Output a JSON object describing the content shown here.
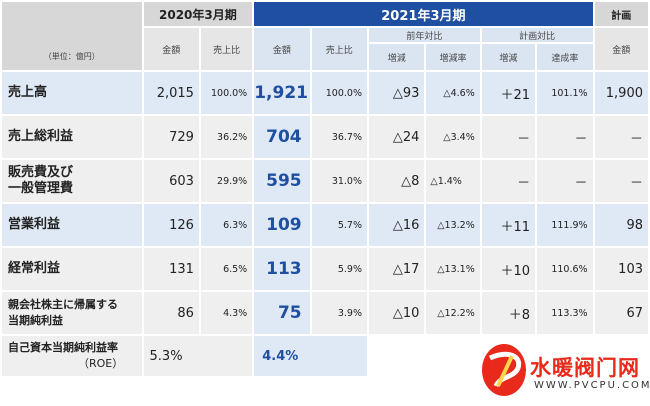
{
  "header": {
    "fy2020": "2020年3月期",
    "fy2021": "2021年3月期",
    "plan": "計画",
    "yoy": "前年対比",
    "vs_plan": "計画対比",
    "unit": "（単位：億円）",
    "amount": "金額",
    "sales_ratio": "売上比",
    "change": "増減",
    "change_rate": "増減率",
    "achievement": "達成率"
  },
  "rows": [
    {
      "label1": "売上高",
      "label2": "",
      "a2020": "2,015",
      "r2020": "100.0%",
      "a2021": "1,921",
      "r2021": "100.0%",
      "yoy_chg": "△93",
      "yoy_rate": "△4.6%",
      "plan_chg": "＋21",
      "plan_ach": "101.1%",
      "plan": "1,900"
    },
    {
      "label1": "売上総利益",
      "label2": "",
      "a2020": "729",
      "r2020": "36.2%",
      "a2021": "704",
      "r2021": "36.7%",
      "yoy_chg": "△24",
      "yoy_rate": "△3.4%",
      "plan_chg": "－",
      "plan_ach": "－",
      "plan": "－"
    },
    {
      "label1": "販売費及び",
      "label2": "一般管理費",
      "a2020": "603",
      "r2020": "29.9%",
      "a2021": "595",
      "r2021": "31.0%",
      "yoy_chg": "△8",
      "yoy_rate": "△1.4%",
      "plan_chg": "－",
      "plan_ach": "－",
      "plan": "－"
    },
    {
      "label1": "営業利益",
      "label2": "",
      "a2020": "126",
      "r2020": "6.3%",
      "a2021": "109",
      "r2021": "5.7%",
      "yoy_chg": "△16",
      "yoy_rate": "△13.2%",
      "plan_chg": "＋11",
      "plan_ach": "111.9%",
      "plan": "98"
    },
    {
      "label1": "経常利益",
      "label2": "",
      "a2020": "131",
      "r2020": "6.5%",
      "a2021": "113",
      "r2021": "5.9%",
      "yoy_chg": "△17",
      "yoy_rate": "△13.1%",
      "plan_chg": "＋10",
      "plan_ach": "110.6%",
      "plan": "103"
    },
    {
      "label1": "親会社株主に帰属する",
      "label2": "当期純利益",
      "a2020": "86",
      "r2020": "4.3%",
      "a2021": "75",
      "r2021": "3.9%",
      "yoy_chg": "△10",
      "yoy_rate": "△12.2%",
      "plan_chg": "＋8",
      "plan_ach": "113.3%",
      "plan": "67"
    }
  ],
  "roe": {
    "label1": "自己資本当期純利益率",
    "label2": "（ROE）",
    "v2020": "5.3%",
    "v2021": "4.4%"
  },
  "watermark": {
    "text": "水暖阀门网",
    "url": "WWW.PVCPU.COM"
  },
  "colors": {
    "blue_header": "#1f4fa0",
    "blue_cell": "#dfe8f5",
    "gray_cell": "#efefef",
    "logo_red": "#e8291c"
  }
}
